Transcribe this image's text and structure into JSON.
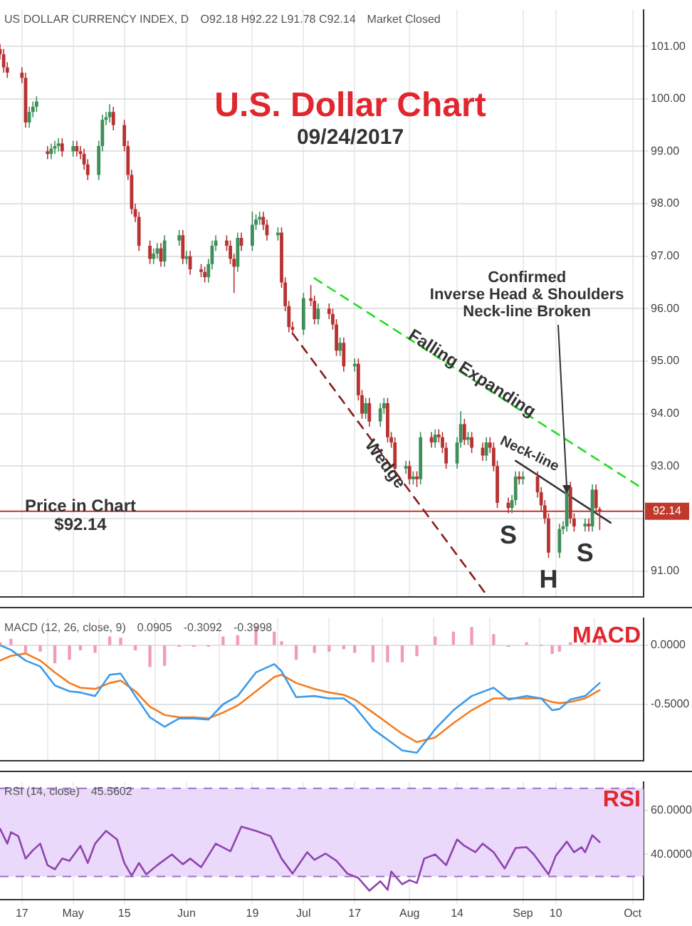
{
  "chart_data": [
    {
      "type": "candlestick",
      "title": "U.S. Dollar Chart",
      "subtitle": "09/24/2017",
      "x": [
        "2017-04-11",
        "2017-04-12",
        "2017-04-13",
        "2017-04-17",
        "2017-04-18",
        "2017-04-19",
        "2017-04-20",
        "2017-04-21",
        "2017-04-24",
        "2017-04-25",
        "2017-04-26",
        "2017-04-27",
        "2017-04-28",
        "2017-05-01",
        "2017-05-02",
        "2017-05-03",
        "2017-05-04",
        "2017-05-05",
        "2017-05-08",
        "2017-05-09",
        "2017-05-10",
        "2017-05-11",
        "2017-05-12",
        "2017-05-15",
        "2017-05-16",
        "2017-05-17",
        "2017-05-18",
        "2017-05-19",
        "2017-05-22",
        "2017-05-23",
        "2017-05-24",
        "2017-05-25",
        "2017-05-26",
        "2017-05-30",
        "2017-05-31",
        "2017-06-01",
        "2017-06-02",
        "2017-06-05",
        "2017-06-06",
        "2017-06-07",
        "2017-06-08",
        "2017-06-09",
        "2017-06-12",
        "2017-06-13",
        "2017-06-14",
        "2017-06-15",
        "2017-06-16",
        "2017-06-19",
        "2017-06-20",
        "2017-06-21",
        "2017-06-22",
        "2017-06-23",
        "2017-06-26",
        "2017-06-27",
        "2017-06-28",
        "2017-06-29",
        "2017-06-30",
        "2017-07-03",
        "2017-07-05",
        "2017-07-06",
        "2017-07-07",
        "2017-07-10",
        "2017-07-11",
        "2017-07-12",
        "2017-07-13",
        "2017-07-14",
        "2017-07-17",
        "2017-07-18",
        "2017-07-19",
        "2017-07-20",
        "2017-07-21",
        "2017-07-24",
        "2017-07-25",
        "2017-07-26",
        "2017-07-27",
        "2017-07-28",
        "2017-07-31",
        "2017-08-01",
        "2017-08-02",
        "2017-08-03",
        "2017-08-04",
        "2017-08-07",
        "2017-08-08",
        "2017-08-09",
        "2017-08-10",
        "2017-08-11",
        "2017-08-14",
        "2017-08-15",
        "2017-08-16",
        "2017-08-17",
        "2017-08-18",
        "2017-08-21",
        "2017-08-22",
        "2017-08-23",
        "2017-08-24",
        "2017-08-25",
        "2017-08-28",
        "2017-08-29",
        "2017-08-30",
        "2017-08-31",
        "2017-09-01",
        "2017-09-05",
        "2017-09-06",
        "2017-09-07",
        "2017-09-08",
        "2017-09-11",
        "2017-09-12",
        "2017-09-13",
        "2017-09-14",
        "2017-09-15",
        "2017-09-18",
        "2017-09-19",
        "2017-09-20",
        "2017-09-21",
        "2017-09-22"
      ],
      "ohlc": [
        [
          100.95,
          101.05,
          100.75,
          100.85
        ],
        [
          100.85,
          100.95,
          100.5,
          100.6
        ],
        [
          100.6,
          100.7,
          100.4,
          100.5
        ],
        [
          100.5,
          100.6,
          100.3,
          100.4
        ],
        [
          100.4,
          100.5,
          99.45,
          99.55
        ],
        [
          99.55,
          99.85,
          99.45,
          99.75
        ],
        [
          99.75,
          99.95,
          99.65,
          99.85
        ],
        [
          99.85,
          100.05,
          99.75,
          99.95
        ],
        [
          99.0,
          99.1,
          98.85,
          98.95
        ],
        [
          98.95,
          99.15,
          98.85,
          99.05
        ],
        [
          99.05,
          99.2,
          98.95,
          99.1
        ],
        [
          99.1,
          99.25,
          99.0,
          99.15
        ],
        [
          99.15,
          99.25,
          98.9,
          99.0
        ],
        [
          99.0,
          99.2,
          98.9,
          99.1
        ],
        [
          99.1,
          99.2,
          98.9,
          99.0
        ],
        [
          99.0,
          99.1,
          98.85,
          98.95
        ],
        [
          98.95,
          99.05,
          98.65,
          98.75
        ],
        [
          98.75,
          98.85,
          98.45,
          98.55
        ],
        [
          98.55,
          99.2,
          98.45,
          99.1
        ],
        [
          99.1,
          99.7,
          99.0,
          99.6
        ],
        [
          99.6,
          99.75,
          99.5,
          99.65
        ],
        [
          99.65,
          99.9,
          99.55,
          99.75
        ],
        [
          99.75,
          99.85,
          99.4,
          99.5
        ],
        [
          99.5,
          99.6,
          99.0,
          99.1
        ],
        [
          99.1,
          99.2,
          98.45,
          98.55
        ],
        [
          98.55,
          98.65,
          97.8,
          97.9
        ],
        [
          97.9,
          98.0,
          97.65,
          97.75
        ],
        [
          97.75,
          97.85,
          97.1,
          97.2
        ],
        [
          97.2,
          97.3,
          96.85,
          96.95
        ],
        [
          96.95,
          97.15,
          96.85,
          97.05
        ],
        [
          97.05,
          97.25,
          96.95,
          97.15
        ],
        [
          97.15,
          97.25,
          96.8,
          96.9
        ],
        [
          96.9,
          97.4,
          96.8,
          97.3
        ],
        [
          97.3,
          97.5,
          97.2,
          97.4
        ],
        [
          97.4,
          97.5,
          96.85,
          96.95
        ],
        [
          96.95,
          97.1,
          96.85,
          97.0
        ],
        [
          97.0,
          97.1,
          96.65,
          96.75
        ],
        [
          96.75,
          96.85,
          96.6,
          96.7
        ],
        [
          96.7,
          96.8,
          96.5,
          96.6
        ],
        [
          96.6,
          96.95,
          96.5,
          96.85
        ],
        [
          96.85,
          97.3,
          96.75,
          97.2
        ],
        [
          97.2,
          97.4,
          97.1,
          97.3
        ],
        [
          97.3,
          97.4,
          97.1,
          97.2
        ],
        [
          97.2,
          97.3,
          96.85,
          96.95
        ],
        [
          96.95,
          97.05,
          96.3,
          96.8
        ],
        [
          96.8,
          97.45,
          96.7,
          97.35
        ],
        [
          97.35,
          97.45,
          97.1,
          97.2
        ],
        [
          97.2,
          97.85,
          97.1,
          97.6
        ],
        [
          97.6,
          97.8,
          97.5,
          97.7
        ],
        [
          97.7,
          97.85,
          97.6,
          97.75
        ],
        [
          97.75,
          97.85,
          97.5,
          97.6
        ],
        [
          97.6,
          97.7,
          97.3,
          97.4
        ],
        [
          97.4,
          97.55,
          97.3,
          97.45
        ],
        [
          97.45,
          97.55,
          96.4,
          96.5
        ],
        [
          96.5,
          96.6,
          95.95,
          96.05
        ],
        [
          96.05,
          96.15,
          95.55,
          95.65
        ],
        [
          95.65,
          95.75,
          95.5,
          95.6
        ],
        [
          95.6,
          96.3,
          95.5,
          96.2
        ],
        [
          96.2,
          96.45,
          96.05,
          96.15
        ],
        [
          96.15,
          96.25,
          95.7,
          95.8
        ],
        [
          95.8,
          96.1,
          95.7,
          96.0
        ],
        [
          96.0,
          96.1,
          95.8,
          95.9
        ],
        [
          95.9,
          96.0,
          95.6,
          95.7
        ],
        [
          95.7,
          95.8,
          95.1,
          95.2
        ],
        [
          95.2,
          95.45,
          95.1,
          95.35
        ],
        [
          95.35,
          95.45,
          94.8,
          94.9
        ],
        [
          94.9,
          95.05,
          94.8,
          94.95
        ],
        [
          94.95,
          95.05,
          94.25,
          94.35
        ],
        [
          94.35,
          94.45,
          93.9,
          94.0
        ],
        [
          94.0,
          94.3,
          93.9,
          94.2
        ],
        [
          94.2,
          94.3,
          93.75,
          93.85
        ],
        [
          93.85,
          94.2,
          93.75,
          94.1
        ],
        [
          94.1,
          94.3,
          94.0,
          94.2
        ],
        [
          94.2,
          94.3,
          93.45,
          93.55
        ],
        [
          93.55,
          93.65,
          93.35,
          93.45
        ],
        [
          93.45,
          93.55,
          92.85,
          92.95
        ],
        [
          92.95,
          93.1,
          92.85,
          93.0
        ],
        [
          93.0,
          93.1,
          92.65,
          92.75
        ],
        [
          92.75,
          92.9,
          92.65,
          92.8
        ],
        [
          92.8,
          92.9,
          92.6,
          92.75
        ],
        [
          92.75,
          93.65,
          92.65,
          93.55
        ],
        [
          93.55,
          93.65,
          93.35,
          93.45
        ],
        [
          93.45,
          93.7,
          93.35,
          93.6
        ],
        [
          93.6,
          93.7,
          93.45,
          93.55
        ],
        [
          93.55,
          93.65,
          93.25,
          93.35
        ],
        [
          93.35,
          93.45,
          92.95,
          93.05
        ],
        [
          93.05,
          93.55,
          92.95,
          93.45
        ],
        [
          93.45,
          94.05,
          93.35,
          93.8
        ],
        [
          93.8,
          93.9,
          93.4,
          93.5
        ],
        [
          93.5,
          93.65,
          93.4,
          93.55
        ],
        [
          93.55,
          93.65,
          93.25,
          93.35
        ],
        [
          93.35,
          93.45,
          93.1,
          93.2
        ],
        [
          93.2,
          93.55,
          93.1,
          93.45
        ],
        [
          93.45,
          93.55,
          93.25,
          93.35
        ],
        [
          93.35,
          93.45,
          92.9,
          93.0
        ],
        [
          93.0,
          93.1,
          92.2,
          92.3
        ],
        [
          92.3,
          92.4,
          92.1,
          92.2
        ],
        [
          92.2,
          92.45,
          92.1,
          92.35
        ],
        [
          92.35,
          92.9,
          92.25,
          92.8
        ],
        [
          92.8,
          92.9,
          92.65,
          92.75
        ],
        [
          92.75,
          92.9,
          92.65,
          92.8
        ],
        [
          92.8,
          92.9,
          92.4,
          92.5
        ],
        [
          92.5,
          92.6,
          92.15,
          92.25
        ],
        [
          92.25,
          92.35,
          91.9,
          92.0
        ],
        [
          92.0,
          92.1,
          91.25,
          91.35
        ],
        [
          91.35,
          91.9,
          91.25,
          91.8
        ],
        [
          91.8,
          91.95,
          91.7,
          91.85
        ],
        [
          91.85,
          92.7,
          91.75,
          92.6
        ],
        [
          92.6,
          92.7,
          91.9,
          92.0
        ],
        [
          92.0,
          92.1,
          91.75,
          91.85
        ],
        [
          91.85,
          92.0,
          91.75,
          91.9
        ],
        [
          91.9,
          92.0,
          91.75,
          91.85
        ],
        [
          91.85,
          92.65,
          91.75,
          92.55
        ],
        [
          92.55,
          92.65,
          92.1,
          92.2
        ],
        [
          92.18,
          92.22,
          91.78,
          92.14
        ]
      ],
      "colors": [
        "#b83232",
        "#b83232",
        "#b83232",
        "#b83232",
        "#b83232",
        "#3f8f5b",
        "#3f8f5b",
        "#3f8f5b",
        "#b83232",
        "#3f8f5b",
        "#3f8f5b",
        "#3f8f5b",
        "#b83232",
        "#3f8f5b",
        "#b83232",
        "#b83232",
        "#b83232",
        "#b83232",
        "#3f8f5b",
        "#3f8f5b",
        "#3f8f5b",
        "#3f8f5b",
        "#b83232",
        "#b83232",
        "#b83232",
        "#b83232",
        "#b83232",
        "#b83232",
        "#b83232",
        "#3f8f5b",
        "#3f8f5b",
        "#b83232",
        "#3f8f5b",
        "#3f8f5b",
        "#b83232",
        "#3f8f5b",
        "#b83232",
        "#b83232",
        "#b83232",
        "#3f8f5b",
        "#3f8f5b",
        "#3f8f5b",
        "#b83232",
        "#b83232",
        "#b83232",
        "#3f8f5b",
        "#b83232",
        "#3f8f5b",
        "#3f8f5b",
        "#3f8f5b",
        "#b83232",
        "#b83232",
        "#3f8f5b",
        "#b83232",
        "#b83232",
        "#b83232",
        "#b83232",
        "#3f8f5b",
        "#b83232",
        "#b83232",
        "#3f8f5b",
        "#b83232",
        "#b83232",
        "#b83232",
        "#3f8f5b",
        "#b83232",
        "#3f8f5b",
        "#b83232",
        "#b83232",
        "#3f8f5b",
        "#b83232",
        "#3f8f5b",
        "#3f8f5b",
        "#b83232",
        "#b83232",
        "#b83232",
        "#3f8f5b",
        "#b83232",
        "#3f8f5b",
        "#b83232",
        "#3f8f5b",
        "#b83232",
        "#3f8f5b",
        "#b83232",
        "#b83232",
        "#b83232",
        "#3f8f5b",
        "#3f8f5b",
        "#b83232",
        "#3f8f5b",
        "#b83232",
        "#b83232",
        "#3f8f5b",
        "#b83232",
        "#b83232",
        "#b83232",
        "#b83232",
        "#3f8f5b",
        "#3f8f5b",
        "#b83232",
        "#3f8f5b",
        "#b83232",
        "#b83232",
        "#b83232",
        "#b83232",
        "#3f8f5b",
        "#3f8f5b",
        "#3f8f5b",
        "#b83232",
        "#b83232",
        "#3f8f5b",
        "#b83232",
        "#3f8f5b",
        "#b83232",
        "#b83232"
      ],
      "series": [
        {
          "type": "line",
          "color": "#22dd22",
          "line_style": "dashed",
          "x": [
            "2017-07-06",
            "2017-10-04"
          ],
          "values": [
            96.58,
            92.56
          ]
        },
        {
          "type": "line",
          "color": "#8b1a1a",
          "line_style": "dashed",
          "x": [
            "2017-06-30",
            "2017-08-22"
          ],
          "values": [
            95.53,
            90.55
          ]
        },
        {
          "type": "line",
          "color": "#333333",
          "line_style": "solid",
          "x": [
            "2017-08-30",
            "2017-09-25"
          ],
          "values": [
            93.1,
            91.92
          ]
        }
      ],
      "ref_lines": [
        {
          "axis": "y",
          "value": 92.14,
          "label": "92.14",
          "color": "#c0392b"
        }
      ],
      "annotations": [
        "US DOLLAR CURRENCY INDEX, D",
        "O92.18 H92.22 L91.78 C92.14",
        "Market Closed",
        {
          "text": "Falling Expanding",
          "x": "2017-08-18",
          "y": 94.76
        },
        {
          "text": "Wedge",
          "x": "2017-07-19",
          "y": 93.74
        },
        {
          "text": "Neck-line",
          "x": "2017-09-02",
          "y": 92.96
        },
        {
          "text": "Confirmed\nInverse Head & Shoulders\nNeck-line Broken",
          "x": "2017-09-13",
          "y": 92.46
        },
        {
          "text": "S",
          "x": "2017-08-28",
          "y": 92.1
        },
        {
          "text": "H",
          "x": "2017-09-08",
          "y": 91.25
        },
        {
          "text": "S",
          "x": "2017-09-18",
          "y": 91.75
        },
        {
          "text": "Price in Chart\n$92.14",
          "x": "2017-05-03",
          "y": 92.05
        }
      ],
      "xlim": [
        "2017-04-11",
        "2017-10-04"
      ],
      "xticks": [
        {
          "value": "2017-04-17",
          "label": null
        },
        {
          "value": "2017-05-01",
          "label": null
        },
        {
          "value": "2017-05-15",
          "label": null
        },
        {
          "value": "2017-06-01",
          "label": null
        },
        {
          "value": "2017-06-19",
          "label": null
        },
        {
          "value": "2017-07-03",
          "label": null
        },
        {
          "value": "2017-07-17",
          "label": null
        },
        {
          "value": "2017-08-01",
          "label": null
        },
        {
          "value": "2017-08-14",
          "label": null
        },
        {
          "value": "2017-09-01",
          "label": null
        },
        {
          "value": "2017-09-10",
          "label": null
        },
        {
          "value": "2017-10-01",
          "label": null
        }
      ],
      "ylim": [
        90.5,
        101.7
      ],
      "yticks": [
        {
          "value": 91,
          "label": "91.00"
        },
        {
          "value": 92,
          "label": null
        },
        {
          "value": 93,
          "label": "93.00"
        },
        {
          "value": 94,
          "label": "94.00"
        },
        {
          "value": 95,
          "label": "95.00"
        },
        {
          "value": 96,
          "label": "96.00"
        },
        {
          "value": 97,
          "label": "97.00"
        },
        {
          "value": 98,
          "label": "98.00"
        },
        {
          "value": 99,
          "label": "99.00"
        },
        {
          "value": 100,
          "label": "100.00"
        },
        {
          "value": 101,
          "label": "101.00"
        }
      ],
      "grid": true,
      "legend": false,
      "marker": "none",
      "tick_labels": "y"
    },
    {
      "type": "line",
      "title": "MACD",
      "annotations": [
        "MACD (12, 26, close, 9)",
        "0.0905",
        "-0.3092",
        "-0.3998"
      ],
      "x": [
        "2017-04-11",
        "2017-04-14",
        "2017-04-18",
        "2017-04-22",
        "2017-04-26",
        "2017-04-30",
        "2017-05-03",
        "2017-05-07",
        "2017-05-11",
        "2017-05-14",
        "2017-05-18",
        "2017-05-22",
        "2017-05-26",
        "2017-05-30",
        "2017-06-03",
        "2017-06-07",
        "2017-06-11",
        "2017-06-15",
        "2017-06-20",
        "2017-06-25",
        "2017-06-27",
        "2017-07-01",
        "2017-07-06",
        "2017-07-10",
        "2017-07-14",
        "2017-07-17",
        "2017-07-22",
        "2017-07-26",
        "2017-07-30",
        "2017-08-03",
        "2017-08-08",
        "2017-08-13",
        "2017-08-18",
        "2017-08-24",
        "2017-08-28",
        "2017-09-02",
        "2017-09-06",
        "2017-09-09",
        "2017-09-11",
        "2017-09-14",
        "2017-09-18",
        "2017-09-22"
      ],
      "series": [
        {
          "type": "bar",
          "color": "#f29ab8",
          "values": [
            0.02,
            0.05,
            -0.06,
            -0.05,
            -0.15,
            -0.12,
            -0.04,
            -0.06,
            0.07,
            0.06,
            -0.04,
            -0.18,
            -0.17,
            -0.01,
            -0.01,
            -0.01,
            0.07,
            0.08,
            0.16,
            0.11,
            0.03,
            -0.12,
            -0.06,
            -0.05,
            -0.03,
            -0.06,
            -0.14,
            -0.14,
            -0.14,
            -0.09,
            0.07,
            0.11,
            0.15,
            0.09,
            -0.01,
            0.02,
            0.0,
            -0.07,
            -0.05,
            0.02,
            0.02,
            0.06
          ]
        },
        {
          "type": "line",
          "color": "#3d9be9",
          "values": [
            0.0,
            -0.04,
            -0.13,
            -0.18,
            -0.34,
            -0.39,
            -0.4,
            -0.43,
            -0.25,
            -0.24,
            -0.43,
            -0.61,
            -0.69,
            -0.62,
            -0.62,
            -0.63,
            -0.5,
            -0.43,
            -0.23,
            -0.16,
            -0.22,
            -0.44,
            -0.43,
            -0.45,
            -0.45,
            -0.52,
            -0.71,
            -0.8,
            -0.89,
            -0.91,
            -0.71,
            -0.55,
            -0.43,
            -0.36,
            -0.46,
            -0.43,
            -0.45,
            -0.55,
            -0.54,
            -0.46,
            -0.43,
            -0.32
          ]
        },
        {
          "type": "line",
          "color": "#f57c20",
          "values": [
            -0.13,
            -0.09,
            -0.07,
            -0.13,
            -0.23,
            -0.32,
            -0.36,
            -0.37,
            -0.32,
            -0.3,
            -0.39,
            -0.52,
            -0.59,
            -0.61,
            -0.61,
            -0.62,
            -0.57,
            -0.51,
            -0.39,
            -0.27,
            -0.25,
            -0.32,
            -0.37,
            -0.4,
            -0.42,
            -0.46,
            -0.57,
            -0.66,
            -0.75,
            -0.82,
            -0.78,
            -0.66,
            -0.55,
            -0.45,
            -0.45,
            -0.45,
            -0.45,
            -0.48,
            -0.49,
            -0.48,
            -0.45,
            -0.38
          ]
        }
      ],
      "xlim": [
        "2017-04-11",
        "2017-10-04"
      ],
      "xticks": [
        {
          "value": "2017-04-17",
          "label": null
        },
        {
          "value": "2017-05-01",
          "label": null
        },
        {
          "value": "2017-05-15",
          "label": null
        },
        {
          "value": "2017-06-01",
          "label": null
        },
        {
          "value": "2017-06-19",
          "label": null
        },
        {
          "value": "2017-07-03",
          "label": null
        },
        {
          "value": "2017-07-17",
          "label": null
        },
        {
          "value": "2017-08-01",
          "label": null
        },
        {
          "value": "2017-08-14",
          "label": null
        },
        {
          "value": "2017-09-01",
          "label": null
        },
        {
          "value": "2017-09-10",
          "label": null
        },
        {
          "value": "2017-10-01",
          "label": null
        }
      ],
      "ylim": [
        -0.98,
        0.23
      ],
      "yticks": [
        {
          "value": 0,
          "label": "0.0000"
        },
        {
          "value": -0.5,
          "label": "-0.5000"
        }
      ],
      "grid": true,
      "legend": false,
      "marker": "none",
      "tick_labels": "y"
    },
    {
      "type": "line",
      "title": "RSI",
      "annotations": [
        "RSI (14, close)",
        "45.5602"
      ],
      "x": [
        "2017-04-11",
        "2017-04-13",
        "2017-04-14",
        "2017-04-16",
        "2017-04-18",
        "2017-04-20",
        "2017-04-22",
        "2017-04-24",
        "2017-04-26",
        "2017-04-28",
        "2017-04-30",
        "2017-05-03",
        "2017-05-05",
        "2017-05-07",
        "2017-05-10",
        "2017-05-13",
        "2017-05-15",
        "2017-05-17",
        "2017-05-19",
        "2017-05-21",
        "2017-05-24",
        "2017-05-28",
        "2017-05-31",
        "2017-06-02",
        "2017-06-05",
        "2017-06-09",
        "2017-06-13",
        "2017-06-16",
        "2017-06-20",
        "2017-06-24",
        "2017-06-27",
        "2017-06-30",
        "2017-07-04",
        "2017-07-06",
        "2017-07-09",
        "2017-07-12",
        "2017-07-15",
        "2017-07-18",
        "2017-07-21",
        "2017-07-24",
        "2017-07-26",
        "2017-07-27",
        "2017-07-30",
        "2017-08-01",
        "2017-08-03",
        "2017-08-05",
        "2017-08-08",
        "2017-08-11",
        "2017-08-14",
        "2017-08-16",
        "2017-08-19",
        "2017-08-21",
        "2017-08-24",
        "2017-08-27",
        "2017-08-30",
        "2017-09-02",
        "2017-09-04",
        "2017-09-08",
        "2017-09-10",
        "2017-09-13",
        "2017-09-15",
        "2017-09-17",
        "2017-09-18",
        "2017-09-20",
        "2017-09-22"
      ],
      "series": [
        {
          "type": "line",
          "color": "#8e44ad",
          "values": [
            51.7,
            44.9,
            50.1,
            48.3,
            38.1,
            41.9,
            44.9,
            35.1,
            33.2,
            38.1,
            37.1,
            43.9,
            36.1,
            44.9,
            50.7,
            46.8,
            36.1,
            30.3,
            36.1,
            30.9,
            35.1,
            40.0,
            35.5,
            38.1,
            34.2,
            44.9,
            41.4,
            52.6,
            50.7,
            48.3,
            38.1,
            31.3,
            41.0,
            37.5,
            40.4,
            37.1,
            31.3,
            29.3,
            23.5,
            27.8,
            23.9,
            32.2,
            26.4,
            28.3,
            27.0,
            38.1,
            40.0,
            35.1,
            46.8,
            43.9,
            41.0,
            44.9,
            41.0,
            33.6,
            42.9,
            43.3,
            40.0,
            30.9,
            39.4,
            45.8,
            41.0,
            43.3,
            41.0,
            48.7,
            45.6
          ]
        }
      ],
      "bands": [
        {
          "axis": "y",
          "from": 30,
          "to": 70,
          "color": "#ead9fb"
        }
      ],
      "ref_lines": [
        {
          "axis": "y",
          "value": 70,
          "color": "#a070c0",
          "line_style": "dashed"
        },
        {
          "axis": "y",
          "value": 30,
          "color": "#a070c0",
          "line_style": "dashed"
        }
      ],
      "xlim": [
        "2017-04-11",
        "2017-10-04"
      ],
      "xticks": [
        {
          "value": "2017-04-17",
          "label": "17"
        },
        {
          "value": "2017-05-01",
          "label": "May"
        },
        {
          "value": "2017-05-15",
          "label": "15"
        },
        {
          "value": "2017-06-01",
          "label": "Jun"
        },
        {
          "value": "2017-06-19",
          "label": "19"
        },
        {
          "value": "2017-07-03",
          "label": "Jul"
        },
        {
          "value": "2017-07-17",
          "label": "17"
        },
        {
          "value": "2017-08-01",
          "label": "Aug"
        },
        {
          "value": "2017-08-14",
          "label": "14"
        },
        {
          "value": "2017-09-01",
          "label": "Sep"
        },
        {
          "value": "2017-09-10",
          "label": "10"
        },
        {
          "value": "2017-10-01",
          "label": "Oct"
        }
      ],
      "ylim": [
        19.5,
        73
      ],
      "yticks": [
        {
          "value": 40,
          "label": "40.0000"
        },
        {
          "value": 60,
          "label": "60.0000"
        }
      ],
      "grid": true,
      "legend": false,
      "marker": "none"
    }
  ]
}
